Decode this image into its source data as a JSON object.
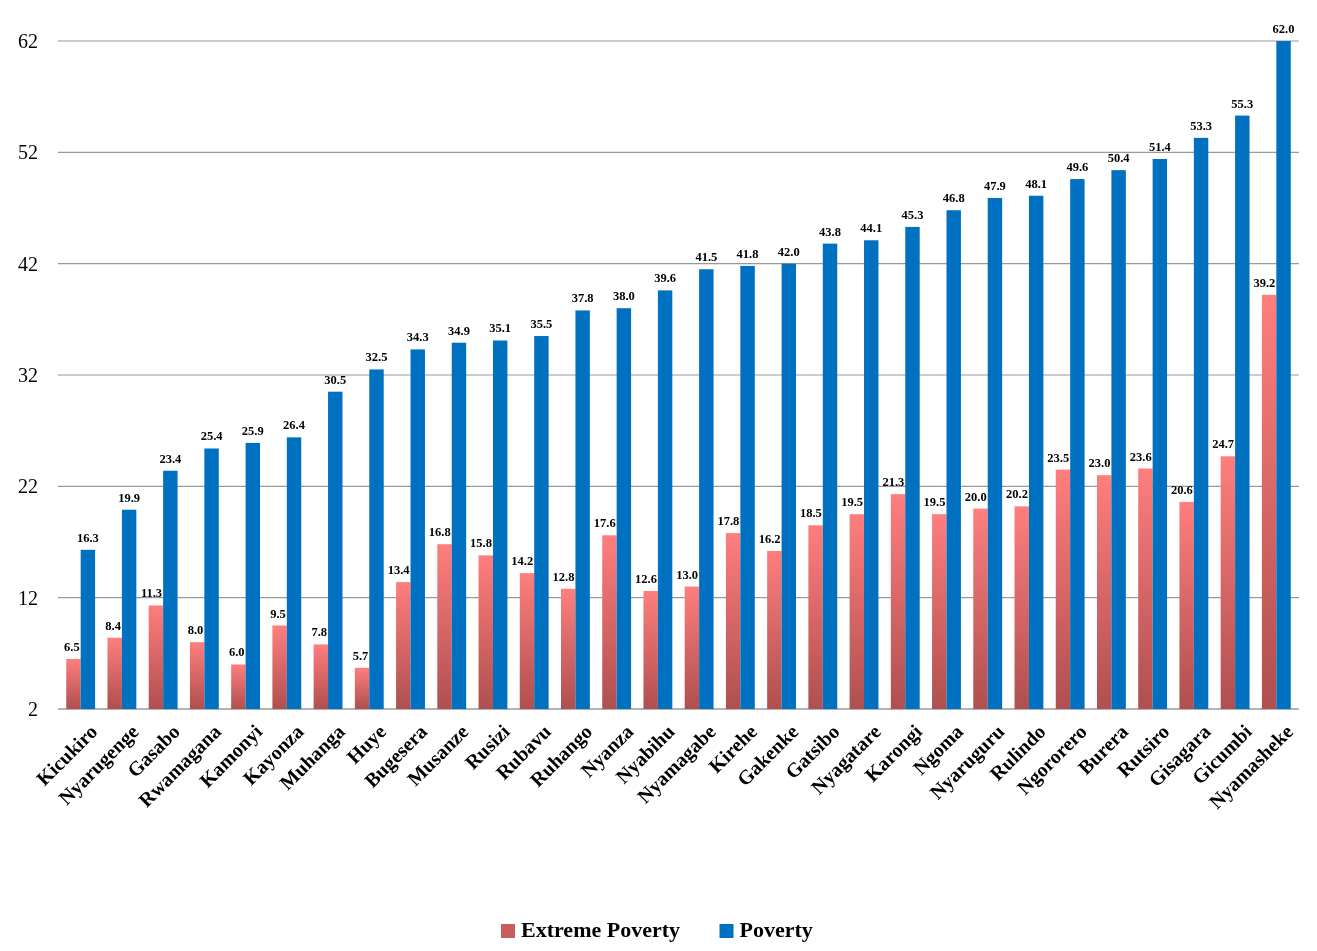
{
  "chart_data": {
    "type": "bar",
    "categories": [
      "Kicukiro",
      "Nyarugenge",
      "Gasabo",
      "Rwamagana",
      "Kamonyi",
      "Kayonza",
      "Muhanga",
      "Huye",
      "Bugesera",
      "Musanze",
      "Rusizi",
      "Rubavu",
      "Ruhango",
      "Nyanza",
      "Nyabihu",
      "Nyamagabe",
      "Kirehe",
      "Gakenke",
      "Gatsibo",
      "Nyagatare",
      "Karongi",
      "Ngoma",
      "Nyaruguru",
      "Rulindo",
      "Ngororero",
      "Burera",
      "Rutsiro",
      "Gisagara",
      "Gicumbi",
      "Nyamasheke"
    ],
    "series": [
      {
        "name": "Extreme Poverty",
        "color": "#e06666",
        "values": [
          6.5,
          8.4,
          11.3,
          8.0,
          6.0,
          9.5,
          7.8,
          5.7,
          13.4,
          16.8,
          15.8,
          14.2,
          12.8,
          17.6,
          12.6,
          13.0,
          17.8,
          16.2,
          18.5,
          19.5,
          21.3,
          19.5,
          20.0,
          20.2,
          23.5,
          23.0,
          23.6,
          20.6,
          24.7,
          39.2
        ],
        "value_labels": [
          "6.5",
          "8.4",
          "11.3",
          "8.0",
          "6.0",
          "9.5",
          "7.8",
          "5.7",
          "13.4",
          "16.8",
          "15.8",
          "14.2",
          "12.8",
          "17.6",
          "12.6",
          "13.0",
          "17.8",
          "16.2",
          "18.5",
          "19.5",
          "21.3",
          "19.5",
          "20.0",
          "20.2",
          "23.5",
          "23.0",
          "23.6",
          "20.6",
          "24.7",
          "39.2"
        ]
      },
      {
        "name": "Poverty",
        "color": "#0070c0",
        "values": [
          16.3,
          19.9,
          23.4,
          25.4,
          25.9,
          26.4,
          30.5,
          32.5,
          34.3,
          34.9,
          35.1,
          35.5,
          37.8,
          38.0,
          39.6,
          41.5,
          41.8,
          42.0,
          43.8,
          44.1,
          45.3,
          46.8,
          47.9,
          48.1,
          49.6,
          50.4,
          51.4,
          53.3,
          55.3,
          62.0
        ],
        "value_labels": [
          "16.3",
          "19.9",
          "23.4",
          "25.4",
          "25.9",
          "26.4",
          "30.5",
          "32.5",
          "34.3",
          "34.9",
          "35.1",
          "35.5",
          "37.8",
          "38.0",
          "39.6",
          "41.5",
          "41.8",
          "42.0",
          "43.8",
          "44.1",
          "45.3",
          "46.8",
          "47.9",
          "48.1",
          "49.6",
          "50.4",
          "51.4",
          "53.3",
          "55.3",
          "62.0"
        ]
      }
    ],
    "ylim": [
      2,
      62
    ],
    "yticks": [
      2,
      12,
      22,
      32,
      42,
      52,
      62
    ],
    "grid": "y",
    "legend": "bottom"
  }
}
